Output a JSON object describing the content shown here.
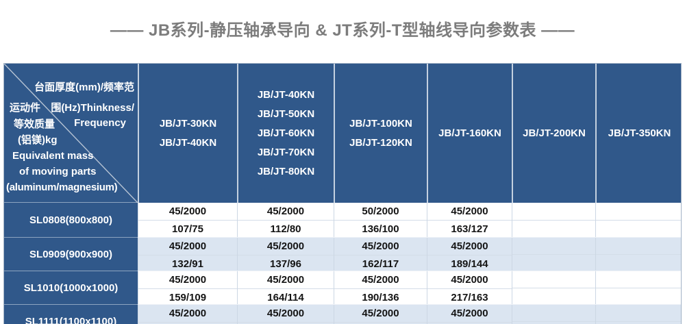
{
  "title": {
    "full": "——  JB系列-静压轴承导向 & JT系列-T型轴线导向参数表  ——"
  },
  "colors": {
    "header_blue": "#30588a",
    "row_alt_blue": "#dbe5f1",
    "row_white": "#ffffff",
    "title_gray": "#7c7c7c",
    "header_text": "#ffffff",
    "data_text": "#141414"
  },
  "table": {
    "corner": {
      "lines": [
        "台面厚度(mm)/频率范",
        "运动件",
        "围(Hz)Thinkness/",
        "等效质量",
        "Frequency",
        "(铝镁)kg",
        "Equivalent mass",
        "of moving parts",
        "(aluminum/magnesium)"
      ]
    },
    "col_headers": [
      {
        "lines": [
          "JB/JT-30KN",
          "JB/JT-40KN"
        ]
      },
      {
        "lines": [
          "JB/JT-40KN",
          "JB/JT-50KN",
          "JB/JT-60KN",
          "JB/JT-70KN",
          "JB/JT-80KN"
        ]
      },
      {
        "lines": [
          "JB/JT-100KN",
          "JB/JT-120KN"
        ]
      },
      {
        "lines": [
          "JB/JT-160KN"
        ]
      },
      {
        "lines": [
          "JB/JT-200KN"
        ]
      },
      {
        "lines": [
          "JB/JT-350KN"
        ]
      }
    ],
    "rows": [
      {
        "name": "SL0808(800x800)",
        "thickness_frequency": [
          "45/2000",
          "45/2000",
          "50/2000",
          "45/2000",
          "",
          ""
        ],
        "mass": [
          "107/75",
          "112/80",
          "136/100",
          "163/127",
          "",
          ""
        ]
      },
      {
        "name": "SL0909(900x900)",
        "thickness_frequency": [
          "45/2000",
          "45/2000",
          "45/2000",
          "45/2000",
          "",
          ""
        ],
        "mass": [
          "132/91",
          "137/96",
          "162/117",
          "189/144",
          "",
          ""
        ]
      },
      {
        "name": "SL1010(1000x1000)",
        "thickness_frequency": [
          "45/2000",
          "45/2000",
          "45/2000",
          "45/2000",
          "",
          ""
        ],
        "mass": [
          "159/109",
          "164/114",
          "190/136",
          "217/163",
          "",
          ""
        ]
      },
      {
        "name": "SL1111(1100x1100)",
        "thickness_frequency": [
          "45/2000",
          "45/2000",
          "45/2000",
          "45/2000",
          "",
          ""
        ],
        "mass": [
          "",
          "",
          "",
          "",
          "",
          ""
        ]
      }
    ]
  }
}
